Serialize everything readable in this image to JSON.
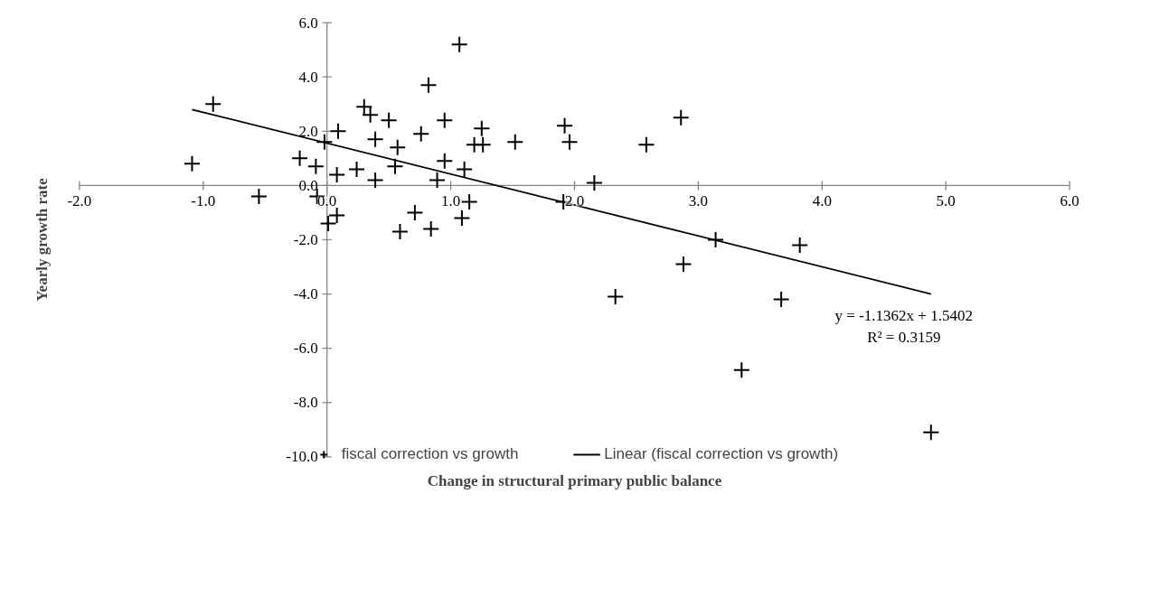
{
  "chart_data": {
    "type": "scatter",
    "xlabel": "Change in structural primary public balance",
    "ylabel": "Yearly growth rate",
    "xlim": [
      -2,
      6
    ],
    "ylim": [
      -10,
      6
    ],
    "xticks": [
      {
        "value": -2,
        "label": "-2.0"
      },
      {
        "value": -1,
        "label": "-1.0"
      },
      {
        "value": 0,
        "label": "0.0"
      },
      {
        "value": 1,
        "label": "1.0"
      },
      {
        "value": 2,
        "label": "2.0"
      },
      {
        "value": 3,
        "label": "3.0"
      },
      {
        "value": 4,
        "label": "4.0"
      },
      {
        "value": 5,
        "label": "5.0"
      },
      {
        "value": 6,
        "label": "6.0"
      }
    ],
    "yticks": [
      {
        "value": -10,
        "label": "-10.0"
      },
      {
        "value": -8,
        "label": "-8.0"
      },
      {
        "value": -6,
        "label": "-6.0"
      },
      {
        "value": -4,
        "label": "-4.0"
      },
      {
        "value": -2,
        "label": "-2.0"
      },
      {
        "value": 0,
        "label": "0.0"
      },
      {
        "value": 2,
        "label": "2.0"
      },
      {
        "value": 4,
        "label": "4.0"
      },
      {
        "value": 6,
        "label": "6.0"
      }
    ],
    "marker": "cross",
    "grid": false,
    "legend": "bottom",
    "annotations": [
      "y = -1.1362x + 1.5402",
      "R² = 0.3159"
    ],
    "series": [
      {
        "name": "fiscal correction vs growth",
        "color": "#000000",
        "x": [
          -1.09,
          -0.92,
          -0.55,
          -0.22,
          -0.09,
          -0.08,
          -0.02,
          0.01,
          0.08,
          0.08,
          0.09,
          0.24,
          0.3,
          0.35,
          0.39,
          0.39,
          0.5,
          0.55,
          0.57,
          0.59,
          0.71,
          0.76,
          0.82,
          0.84,
          0.89,
          0.95,
          0.95,
          1.07,
          1.09,
          1.11,
          1.15,
          1.19,
          1.25,
          1.26,
          1.52,
          1.92,
          1.96,
          2.16,
          1.91,
          2.58,
          2.86,
          3.14,
          3.82,
          2.88,
          2.33,
          3.67,
          3.35,
          4.88
        ],
        "values": [
          0.8,
          3.0,
          -0.4,
          1.0,
          0.7,
          -0.4,
          1.6,
          -1.4,
          -1.1,
          0.4,
          2.0,
          0.6,
          2.9,
          2.6,
          1.7,
          0.2,
          2.4,
          0.7,
          1.4,
          -1.7,
          -1.0,
          1.9,
          3.7,
          -1.6,
          0.2,
          2.4,
          0.9,
          5.2,
          -1.2,
          0.6,
          -0.6,
          1.5,
          2.1,
          1.5,
          1.6,
          2.2,
          1.6,
          0.1,
          -0.6,
          1.5,
          2.5,
          -2.0,
          -2.2,
          -2.9,
          -4.1,
          -4.2,
          -6.8,
          -9.1
        ]
      },
      {
        "name": "Linear (fiscal correction vs growth)",
        "type": "line",
        "marker": "none",
        "color": "#000000",
        "line_style": "solid",
        "x": [
          -1.09,
          4.88
        ],
        "values": [
          2.8,
          -4.0
        ]
      }
    ]
  }
}
